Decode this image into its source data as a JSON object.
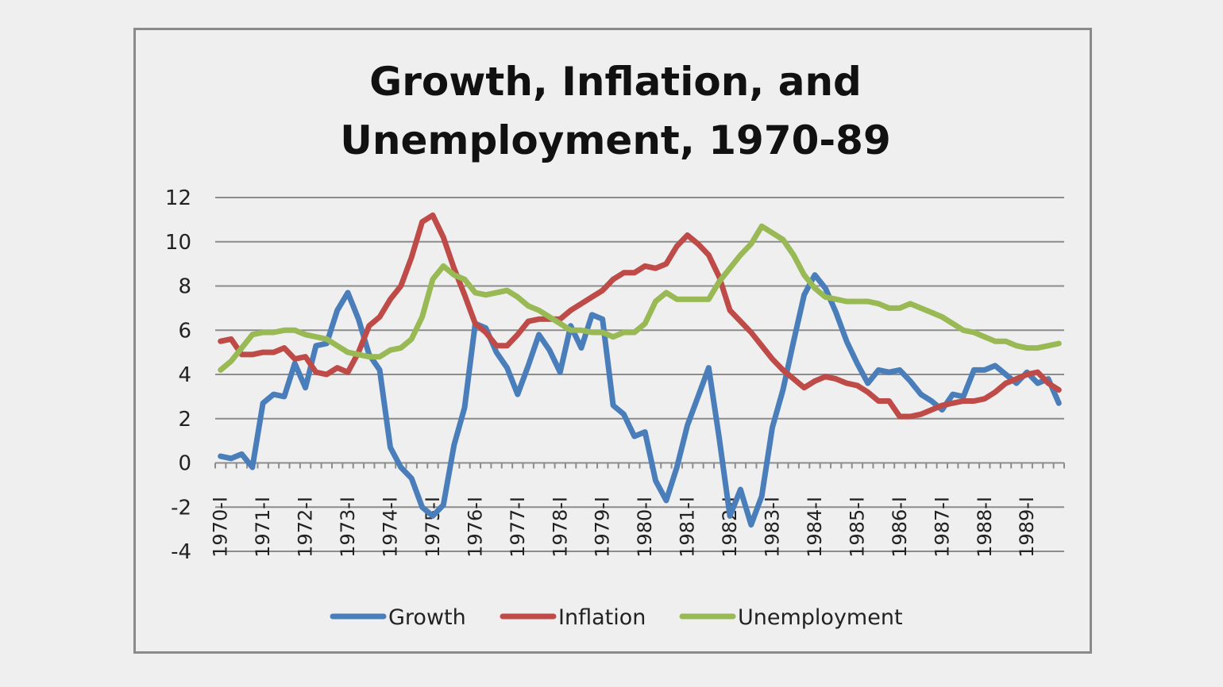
{
  "chart_data": {
    "type": "line",
    "title": [
      "Growth, Inflation, and",
      "Unemployment, 1970-89"
    ],
    "xlabel": "",
    "ylabel": "",
    "ylim": [
      -4,
      12
    ],
    "yticks": [
      -4,
      -2,
      0,
      2,
      4,
      6,
      8,
      10,
      12
    ],
    "grid": true,
    "legend_position": "bottom",
    "x_tick_labels": [
      "1970-I",
      "1971-I",
      "1972-I",
      "1973-I",
      "1974-I",
      "1975-I",
      "1976-I",
      "1977-I",
      "1978-I",
      "1979-I",
      "1980-I",
      "1981-I",
      "1982-I",
      "1983-I",
      "1984-I",
      "1985-I",
      "1986-I",
      "1987-I",
      "1988-I",
      "1989-I"
    ],
    "x_quarters": 80,
    "series": [
      {
        "name": "Growth",
        "color": "#4a7ebb",
        "values": [
          0.3,
          0.2,
          0.4,
          -0.2,
          2.7,
          3.1,
          3.0,
          4.5,
          3.4,
          5.3,
          5.4,
          6.9,
          7.7,
          6.5,
          4.9,
          4.2,
          0.7,
          -0.2,
          -0.7,
          -2.0,
          -2.4,
          -1.9,
          0.8,
          2.5,
          6.3,
          6.1,
          5.0,
          4.3,
          3.1,
          4.4,
          5.8,
          5.1,
          4.1,
          6.2,
          5.2,
          6.7,
          6.5,
          2.6,
          2.2,
          1.2,
          1.4,
          -0.8,
          -1.7,
          -0.2,
          1.7,
          3.0,
          4.3,
          1.1,
          -2.4,
          -1.2,
          -2.8,
          -1.5,
          1.6,
          3.3,
          5.5,
          7.6,
          8.5,
          7.9,
          6.8,
          5.5,
          4.5,
          3.6,
          4.2,
          4.1,
          4.2,
          3.7,
          3.1,
          2.8,
          2.4,
          3.1,
          3.0,
          4.2,
          4.2,
          4.4,
          4.0,
          3.6,
          4.1,
          3.6,
          3.8,
          2.7
        ]
      },
      {
        "name": "Inflation",
        "color": "#be4b48",
        "values": [
          5.5,
          5.6,
          4.9,
          4.9,
          5.0,
          5.0,
          5.2,
          4.7,
          4.8,
          4.1,
          4.0,
          4.3,
          4.1,
          5.0,
          6.2,
          6.6,
          7.4,
          8.0,
          9.3,
          10.9,
          11.2,
          10.2,
          8.8,
          7.6,
          6.3,
          5.9,
          5.3,
          5.3,
          5.8,
          6.4,
          6.5,
          6.5,
          6.5,
          6.9,
          7.2,
          7.5,
          7.8,
          8.3,
          8.6,
          8.6,
          8.9,
          8.8,
          9.0,
          9.8,
          10.3,
          9.9,
          9.4,
          8.4,
          6.9,
          6.4,
          5.9,
          5.3,
          4.7,
          4.2,
          3.8,
          3.4,
          3.7,
          3.9,
          3.8,
          3.6,
          3.5,
          3.2,
          2.8,
          2.8,
          2.1,
          2.1,
          2.2,
          2.4,
          2.6,
          2.7,
          2.8,
          2.8,
          2.9,
          3.2,
          3.6,
          3.8,
          4.0,
          4.1,
          3.6,
          3.3
        ]
      },
      {
        "name": "Unemployment",
        "color": "#98b954",
        "values": [
          4.2,
          4.6,
          5.2,
          5.8,
          5.9,
          5.9,
          6.0,
          6.0,
          5.8,
          5.7,
          5.6,
          5.3,
          5.0,
          4.9,
          4.8,
          4.8,
          5.1,
          5.2,
          5.6,
          6.6,
          8.3,
          8.9,
          8.5,
          8.3,
          7.7,
          7.6,
          7.7,
          7.8,
          7.5,
          7.1,
          6.9,
          6.6,
          6.3,
          6.0,
          6.0,
          5.9,
          5.9,
          5.7,
          5.9,
          5.9,
          6.3,
          7.3,
          7.7,
          7.4,
          7.4,
          7.4,
          7.4,
          8.2,
          8.8,
          9.4,
          9.9,
          10.7,
          10.4,
          10.1,
          9.4,
          8.5,
          7.9,
          7.5,
          7.4,
          7.3,
          7.3,
          7.3,
          7.2,
          7.0,
          7.0,
          7.2,
          7.0,
          6.8,
          6.6,
          6.3,
          6.0,
          5.9,
          5.7,
          5.5,
          5.5,
          5.3,
          5.2,
          5.2,
          5.3,
          5.4
        ]
      }
    ]
  }
}
